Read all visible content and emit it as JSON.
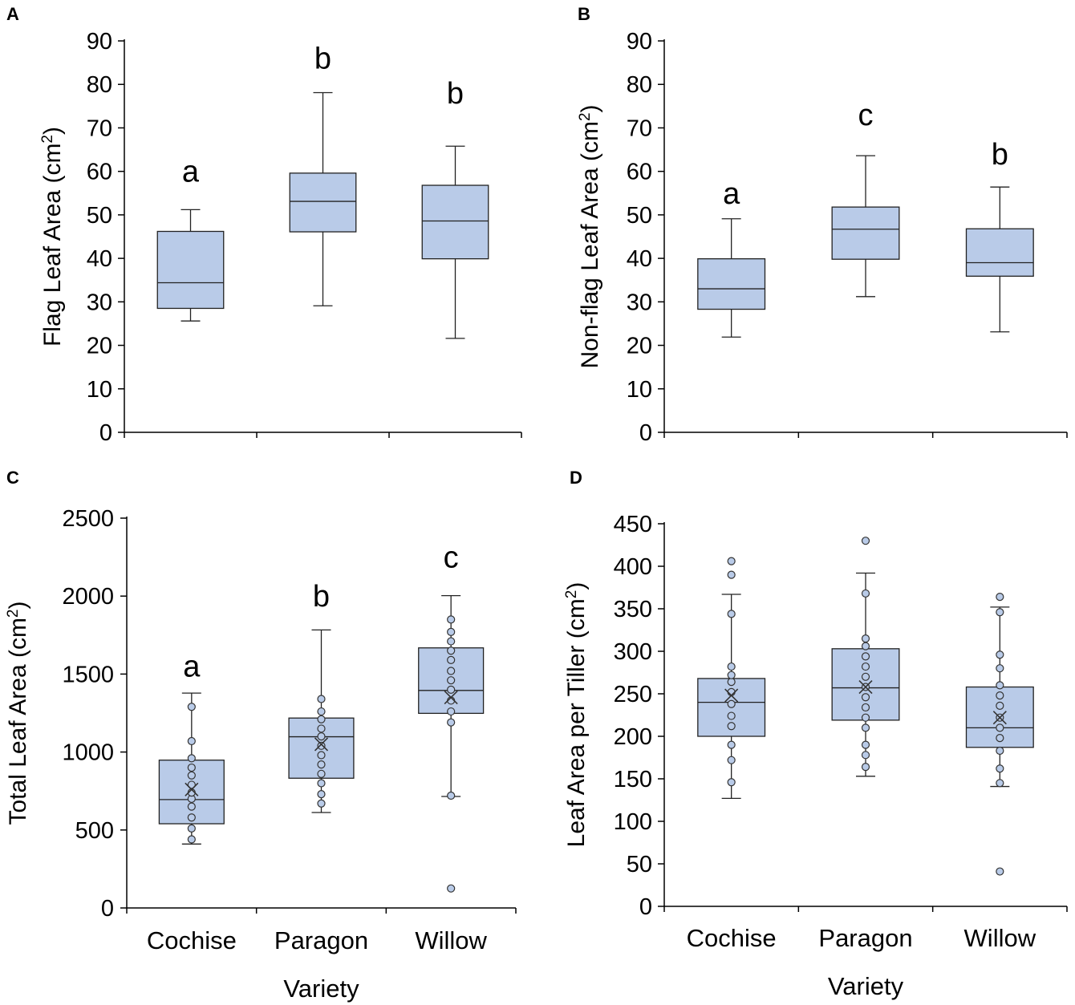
{
  "chart_data": [
    {
      "type": "box",
      "panel": "A",
      "ylabel": "Flag Leaf Area (cm²)",
      "xlabel": "",
      "ylim": [
        0,
        90
      ],
      "yticks": [
        0,
        10,
        20,
        30,
        40,
        50,
        60,
        70,
        80,
        90
      ],
      "categories": [
        "Cochise",
        "Paragon",
        "Willow"
      ],
      "show_category_labels": false,
      "boxes": [
        {
          "category": "Cochise",
          "min": 25.6,
          "q1": 28.5,
          "median": 34.4,
          "q3": 46.2,
          "max": 51.2,
          "letter": "a",
          "letter_y": 60
        },
        {
          "category": "Paragon",
          "min": 29.1,
          "q1": 46.1,
          "median": 53.1,
          "q3": 59.6,
          "max": 78.1,
          "letter": "b",
          "letter_y": 86
        },
        {
          "category": "Willow",
          "min": 21.6,
          "q1": 39.9,
          "median": 48.6,
          "q3": 56.8,
          "max": 65.8,
          "letter": "b",
          "letter_y": 78
        }
      ]
    },
    {
      "type": "box",
      "panel": "B",
      "ylabel": "Non-flag Leaf Area (cm²)",
      "xlabel": "",
      "ylim": [
        0,
        90
      ],
      "yticks": [
        0,
        10,
        20,
        30,
        40,
        50,
        60,
        70,
        80,
        90
      ],
      "categories": [
        "Cochise",
        "Paragon",
        "Willow"
      ],
      "show_category_labels": false,
      "boxes": [
        {
          "category": "Cochise",
          "min": 21.9,
          "q1": 28.3,
          "median": 33.0,
          "q3": 39.9,
          "max": 49.1,
          "letter": "a",
          "letter_y": 55
        },
        {
          "category": "Paragon",
          "min": 31.2,
          "q1": 39.8,
          "median": 46.7,
          "q3": 51.8,
          "max": 63.6,
          "letter": "c",
          "letter_y": 73
        },
        {
          "category": "Willow",
          "min": 23.1,
          "q1": 35.9,
          "median": 39.0,
          "q3": 46.8,
          "max": 56.4,
          "letter": "b",
          "letter_y": 64
        }
      ]
    },
    {
      "type": "box",
      "panel": "C",
      "ylabel": "Total Leaf Area (cm²)",
      "xlabel": "Variety",
      "ylim": [
        0,
        2500
      ],
      "yticks": [
        0,
        500,
        1000,
        1500,
        2000,
        2500
      ],
      "categories": [
        "Cochise",
        "Paragon",
        "Willow"
      ],
      "show_category_labels": true,
      "boxes": [
        {
          "category": "Cochise",
          "min": 410,
          "q1": 540,
          "median": 695,
          "q3": 948,
          "max": 1378,
          "mean": 760,
          "letter": "a",
          "letter_y": 1550,
          "points": [
            440,
            510,
            580,
            650,
            700,
            740,
            790,
            850,
            900,
            960,
            1070,
            1290
          ]
        },
        {
          "category": "Paragon",
          "min": 612,
          "q1": 832,
          "median": 1098,
          "q3": 1218,
          "max": 1783,
          "mean": 1050,
          "letter": "b",
          "letter_y": 2000,
          "points": [
            670,
            730,
            800,
            860,
            920,
            980,
            1040,
            1100,
            1150,
            1210,
            1260,
            1340
          ]
        },
        {
          "category": "Willow",
          "min": 715,
          "q1": 1248,
          "median": 1395,
          "q3": 1668,
          "max": 2003,
          "mean": 1350,
          "letter": "c",
          "letter_y": 2250,
          "points": [
            125,
            720,
            1190,
            1260,
            1330,
            1400,
            1460,
            1520,
            1590,
            1650,
            1710,
            1770,
            1850
          ]
        }
      ]
    },
    {
      "type": "box",
      "panel": "D",
      "ylabel": "Leaf Area per Tiller (cm²)",
      "xlabel": "Variety",
      "ylim": [
        0,
        450
      ],
      "yticks": [
        0,
        50,
        100,
        150,
        200,
        250,
        300,
        350,
        400,
        450
      ],
      "categories": [
        "Cochise",
        "Paragon",
        "Willow"
      ],
      "show_category_labels": true,
      "boxes": [
        {
          "category": "Cochise",
          "min": 127,
          "q1": 200,
          "median": 240,
          "q3": 268,
          "max": 367,
          "mean": 248,
          "points": [
            146,
            172,
            190,
            212,
            224,
            238,
            252,
            264,
            272,
            282,
            344,
            390,
            406
          ]
        },
        {
          "category": "Paragon",
          "min": 153,
          "q1": 219,
          "median": 257,
          "q3": 303,
          "max": 392,
          "mean": 258,
          "points": [
            164,
            178,
            190,
            210,
            222,
            234,
            246,
            258,
            270,
            282,
            294,
            306,
            315,
            368,
            430
          ]
        },
        {
          "category": "Willow",
          "min": 141,
          "q1": 187,
          "median": 210,
          "q3": 258,
          "max": 352,
          "mean": 222,
          "points": [
            41,
            145,
            162,
            183,
            198,
            210,
            222,
            236,
            248,
            260,
            280,
            296,
            346,
            364
          ]
        }
      ]
    }
  ]
}
